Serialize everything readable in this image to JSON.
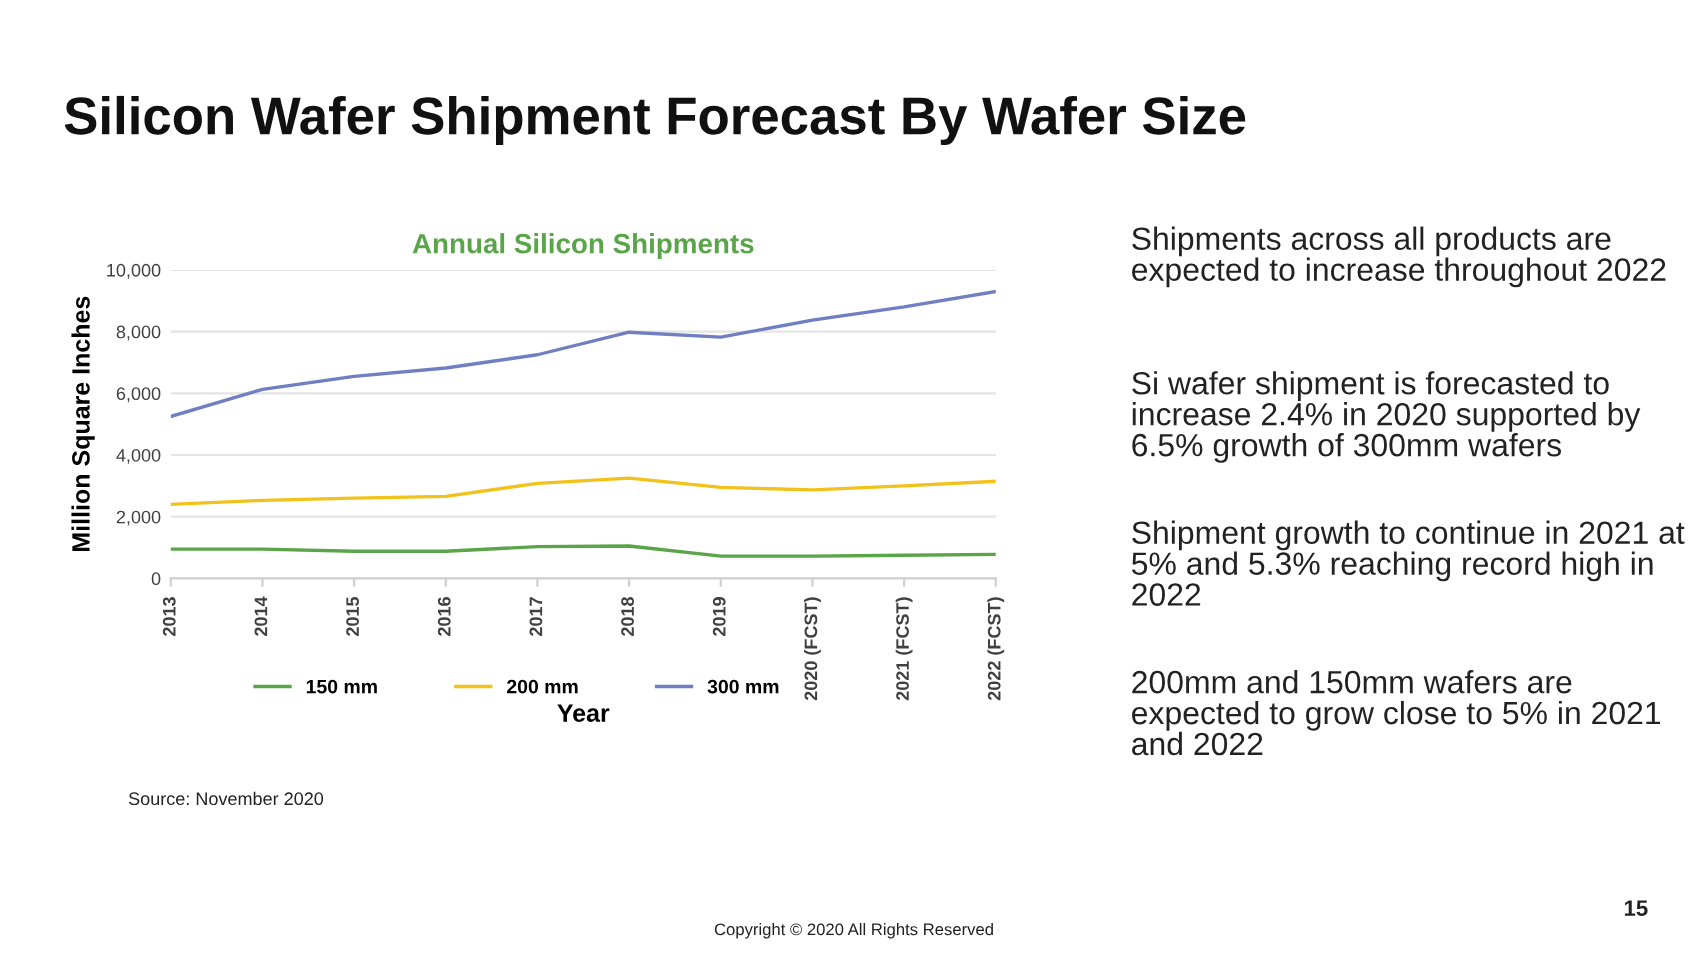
{
  "chart_data": {
    "type": "line",
    "title": "Silicon Wafer Shipment Forecast By Wafer Size",
    "subtitle": "Annual Silicon Shipments",
    "xlabel": "Year",
    "ylabel": "Million Square Inches",
    "categories": [
      "2013",
      "2014",
      "2015",
      "2016",
      "2017",
      "2018",
      "2019",
      "2020 (FCST)",
      "2021 (FCST)",
      "2022 (FCST)"
    ],
    "series": [
      {
        "name": "150 mm",
        "color": "#5aa54a",
        "values": [
          950,
          950,
          880,
          880,
          1030,
          1050,
          720,
          720,
          750,
          780
        ]
      },
      {
        "name": "200 mm",
        "color": "#f2c21a",
        "values": [
          2400,
          2530,
          2600,
          2660,
          3080,
          3250,
          2950,
          2870,
          3000,
          3150
        ]
      },
      {
        "name": "300 mm",
        "color": "#6f7fc2",
        "values": [
          5250,
          6130,
          6550,
          6820,
          7250,
          7980,
          7820,
          8370,
          8800,
          9300
        ]
      }
    ],
    "ylim": [
      0,
      10000
    ],
    "yticks": [
      {
        "value": 0,
        "label": "0"
      },
      {
        "value": 2000,
        "label": "2,000"
      },
      {
        "value": 4000,
        "label": "4,000"
      },
      {
        "value": 6000,
        "label": "6,000"
      },
      {
        "value": 8000,
        "label": "8,000"
      },
      {
        "value": 10000,
        "label": "10,000"
      }
    ],
    "grid": "y",
    "legend": "bottom",
    "marker": "none",
    "line_style": "solid",
    "annotations": [
      "Shipments across all products are expected to increase throughout 2022",
      "Si wafer shipment is forecasted to increase 2.4% in 2020 supported by 6.5% growth of 300mm wafers",
      "Shipment growth to continue in 2021 at 5% and 5.3% reaching record high in 2022",
      "200mm and 150mm wafers are expected to grow close to 5% in 2021 and 2022",
      "Source: November 2020",
      "Copyright © 2020 All Rights Reserved",
      "15"
    ]
  }
}
